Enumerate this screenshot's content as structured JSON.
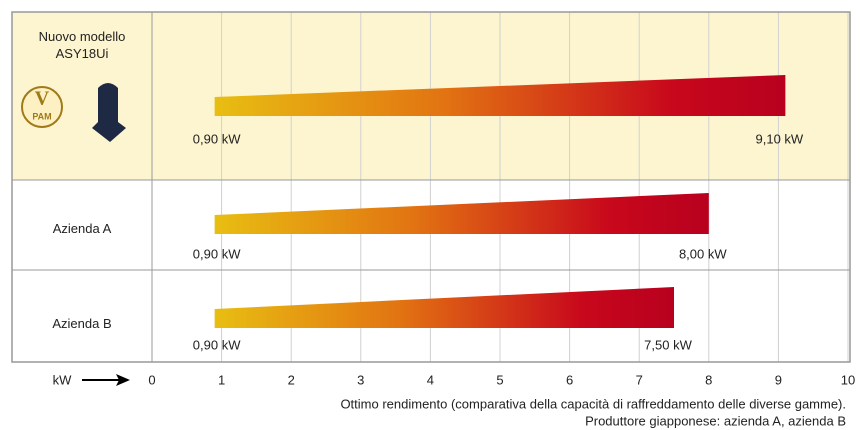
{
  "chart_data": {
    "type": "floating-bar",
    "categories": [
      "Nuovo modello ASY18Ui",
      "Azienda A",
      "Azienda B"
    ],
    "values": [
      [
        0.9,
        9.1
      ],
      [
        0.9,
        8.0
      ],
      [
        0.9,
        7.5
      ]
    ],
    "value_labels": [
      [
        "0,90 kW",
        "9,10 kW"
      ],
      [
        "0,90 kW",
        "8,00 kW"
      ],
      [
        "0,90 kW",
        "7,50 kW"
      ]
    ],
    "xlabel": "kW",
    "xlim": [
      0,
      10
    ],
    "xticks": [
      0,
      1,
      2,
      3,
      4,
      5,
      6,
      7,
      8,
      9,
      10
    ],
    "grid": true,
    "badge": {
      "letter": "V",
      "text": "PAM"
    },
    "notes": [
      "Ottimo rendimento (comparativa della capacità di raffreddamento delle diverse gamme).",
      "Produttore giapponese: azienda A, azienda B"
    ]
  }
}
